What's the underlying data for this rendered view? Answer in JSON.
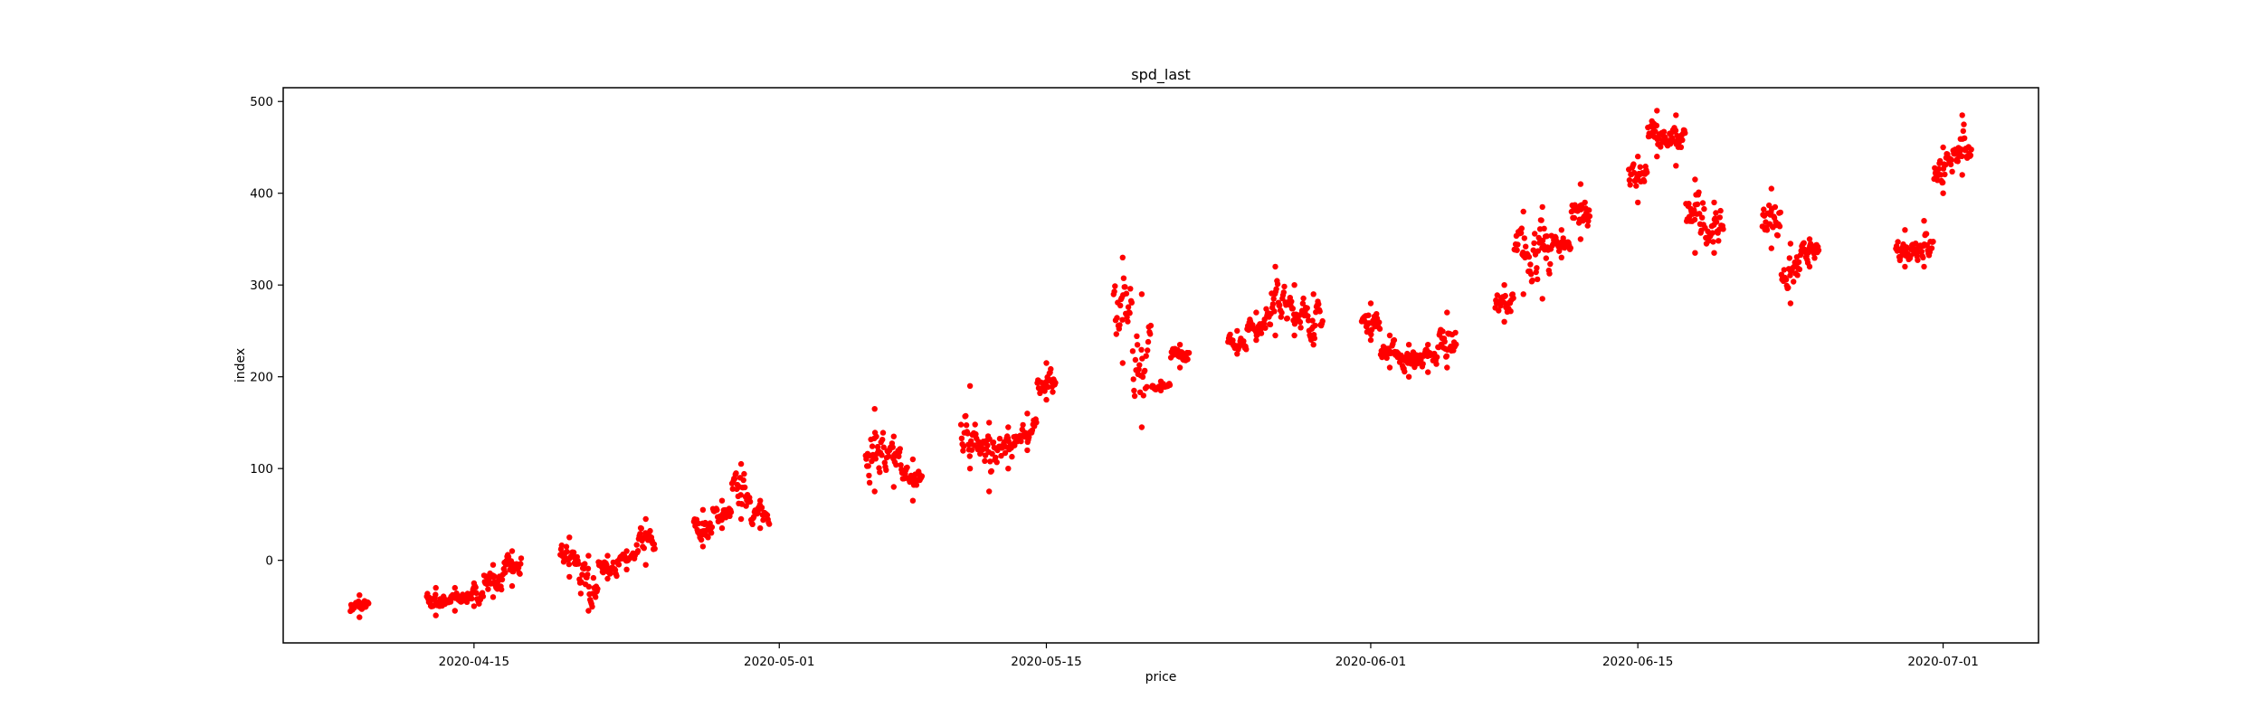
{
  "chart_data": {
    "type": "scatter",
    "title": "spd_last",
    "xlabel": "price",
    "ylabel": "index",
    "x_axis_type": "date",
    "xlim": [
      "2020-04-05",
      "2020-07-06"
    ],
    "ylim": [
      -90,
      515
    ],
    "x_ticks": [
      "2020-04-15",
      "2020-05-01",
      "2020-05-15",
      "2020-06-01",
      "2020-06-15",
      "2020-07-01"
    ],
    "y_ticks": [
      0,
      100,
      200,
      300,
      400,
      500
    ],
    "grid": false,
    "legend": "none",
    "marker_color": "#ff0000",
    "series": [
      {
        "x": [
          "2020-04-09",
          "2020-04-13",
          "2020-04-14",
          "2020-04-15",
          "2020-04-16",
          "2020-04-17",
          "2020-04-20",
          "2020-04-21",
          "2020-04-22",
          "2020-04-23",
          "2020-04-24",
          "2020-04-27",
          "2020-04-28",
          "2020-04-29",
          "2020-04-30",
          "2020-05-06",
          "2020-05-07",
          "2020-05-08",
          "2020-05-11",
          "2020-05-12",
          "2020-05-13",
          "2020-05-14",
          "2020-05-15",
          "2020-05-19",
          "2020-05-20",
          "2020-05-21",
          "2020-05-22",
          "2020-05-25",
          "2020-05-26",
          "2020-05-27",
          "2020-05-28",
          "2020-05-29",
          "2020-06-01",
          "2020-06-02",
          "2020-06-03",
          "2020-06-04",
          "2020-06-05",
          "2020-06-08",
          "2020-06-09",
          "2020-06-10",
          "2020-06-11",
          "2020-06-12",
          "2020-06-15",
          "2020-06-16",
          "2020-06-17",
          "2020-06-18",
          "2020-06-19",
          "2020-06-22",
          "2020-06-23",
          "2020-06-24",
          "2020-06-29",
          "2020-06-30",
          "2020-07-01",
          "2020-07-02"
        ],
        "min": [
          -62,
          -60,
          -55,
          -50,
          -40,
          -28,
          -18,
          -55,
          -20,
          -10,
          -5,
          15,
          35,
          45,
          35,
          75,
          80,
          65,
          100,
          75,
          100,
          120,
          175,
          215,
          145,
          185,
          210,
          225,
          240,
          245,
          245,
          235,
          240,
          210,
          200,
          205,
          210,
          260,
          290,
          285,
          330,
          350,
          390,
          440,
          430,
          335,
          335,
          340,
          280,
          320,
          320,
          320,
          400,
          420
        ],
        "max": [
          -38,
          -30,
          -30,
          -25,
          -5,
          10,
          25,
          5,
          5,
          10,
          45,
          55,
          65,
          105,
          65,
          165,
          135,
          110,
          190,
          150,
          145,
          160,
          215,
          330,
          290,
          195,
          235,
          250,
          270,
          320,
          300,
          290,
          280,
          245,
          235,
          235,
          270,
          300,
          380,
          385,
          360,
          410,
          440,
          490,
          485,
          415,
          390,
          405,
          345,
          350,
          360,
          370,
          450,
          485
        ]
      }
    ]
  }
}
